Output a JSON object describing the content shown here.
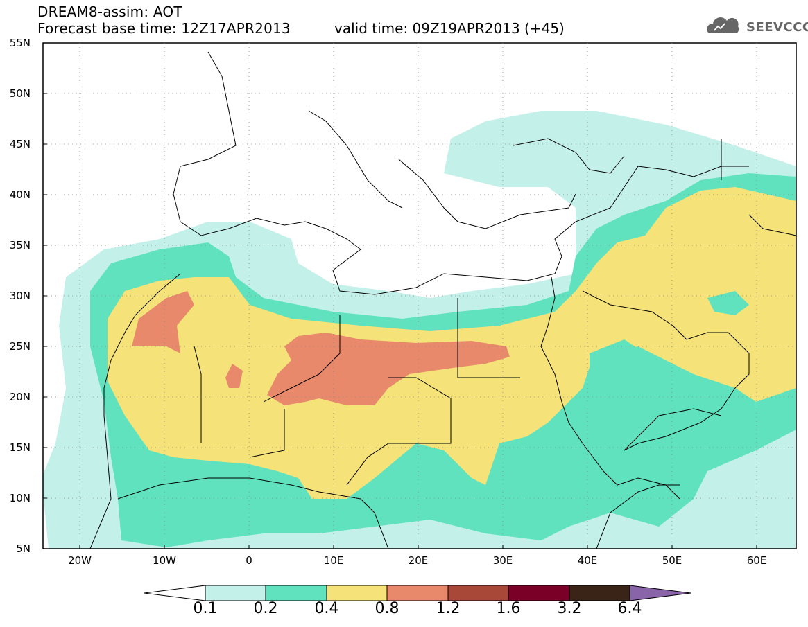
{
  "header": {
    "title": "DREAM8-assim: AOT",
    "forecast": "Forecast base time: 12Z17APR2013",
    "valid": "valid time: 09Z19APR2013 (+45)",
    "logo_text": "SEEVCCC"
  },
  "map": {
    "lat_labels": [
      "55N",
      "50N",
      "45N",
      "40N",
      "35N",
      "30N",
      "25N",
      "20N",
      "15N",
      "10N",
      "5N"
    ],
    "lon_labels": [
      "20W",
      "10W",
      "0",
      "10E",
      "20E",
      "30E",
      "40E",
      "50E",
      "60E"
    ],
    "colors": {
      "0.1-0.2": "#c4f0ea",
      "0.2-0.4": "#5fe2bd",
      "0.4-0.8": "#f5e37a",
      "0.8-1.2": "#e8896b",
      "1.2-1.6": "#a84838",
      "1.6-3.2": "#7a0028",
      "3.2-6.4": "#3a2418",
      "over-6.4": "#8a64a8"
    }
  },
  "colorbar": {
    "labels": [
      "0.1",
      "0.2",
      "0.4",
      "0.8",
      "1.2",
      "1.6",
      "3.2",
      "6.4"
    ],
    "colors": [
      "#c4f0ea",
      "#5fe2bd",
      "#f5e37a",
      "#e8896b",
      "#a84838",
      "#7a0028",
      "#3a2418"
    ],
    "under_color": "#ffffff",
    "over_color": "#8a64a8"
  }
}
